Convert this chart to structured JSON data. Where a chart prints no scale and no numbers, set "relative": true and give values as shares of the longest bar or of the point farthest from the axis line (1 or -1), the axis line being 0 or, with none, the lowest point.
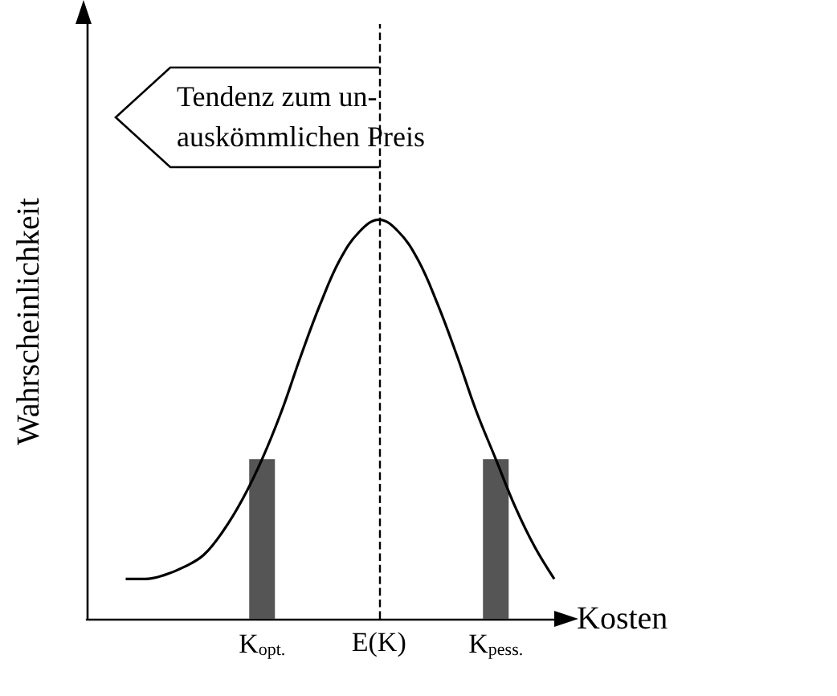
{
  "chart_data": {
    "type": "line",
    "relative": true,
    "xlabel": "Kosten",
    "ylabel": "Wahrscheinlichkeit",
    "categories": [
      null,
      null,
      null,
      null,
      null,
      null,
      null,
      null,
      null,
      "K$_{opt.}$",
      null,
      null,
      null,
      null,
      null,
      "E(K)",
      null,
      null,
      null,
      null,
      null,
      "K$_{pess.}$",
      null,
      null,
      null
    ],
    "series": [
      {
        "color": "#000000",
        "values": [
          null,
          null,
          0.1,
          0.1,
          0.11,
          0.13,
          0.16,
          0.22,
          0.3,
          0.4,
          0.52,
          0.66,
          0.79,
          0.9,
          0.97,
          1.0,
          0.97,
          0.9,
          0.79,
          0.66,
          0.52,
          0.4,
          0.28,
          0.18,
          0.1
        ]
      },
      {
        "type": "bar",
        "color": "#555555",
        "values": [
          null,
          null,
          null,
          null,
          null,
          null,
          null,
          null,
          null,
          0.4,
          null,
          null,
          null,
          null,
          null,
          null,
          null,
          null,
          null,
          null,
          null,
          0.4,
          null,
          null,
          null
        ]
      }
    ],
    "ref_lines": [
      {
        "axis": "x",
        "value": "E(K)",
        "line_style": "dashed",
        "color": "#000000"
      }
    ],
    "annotations": [
      "Tendenz zum un-\nauskömmlichen Preis"
    ],
    "marker": "none",
    "grid": false
  }
}
